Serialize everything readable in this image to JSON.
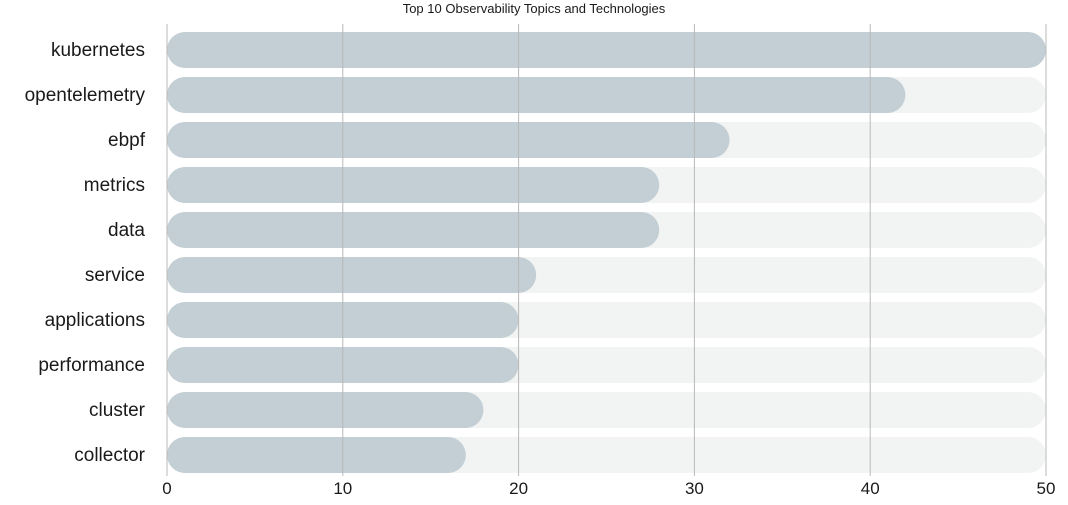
{
  "chart_data": {
    "type": "bar",
    "orientation": "horizontal",
    "title": "Top 10 Observability Topics and Technologies",
    "categories": [
      "kubernetes",
      "opentelemetry",
      "ebpf",
      "metrics",
      "data",
      "service",
      "applications",
      "performance",
      "cluster",
      "collector"
    ],
    "values": [
      50,
      42,
      32,
      28,
      28,
      21,
      20,
      20,
      18,
      17
    ],
    "xlim": [
      0,
      50
    ],
    "xticks": [
      0,
      10,
      20,
      30,
      40,
      50
    ],
    "xlabel": "",
    "ylabel": "",
    "grid": true,
    "colors": {
      "bar": "#c3cfd4",
      "track": "#f2f3f3",
      "grid": "#b8b8b8"
    }
  }
}
